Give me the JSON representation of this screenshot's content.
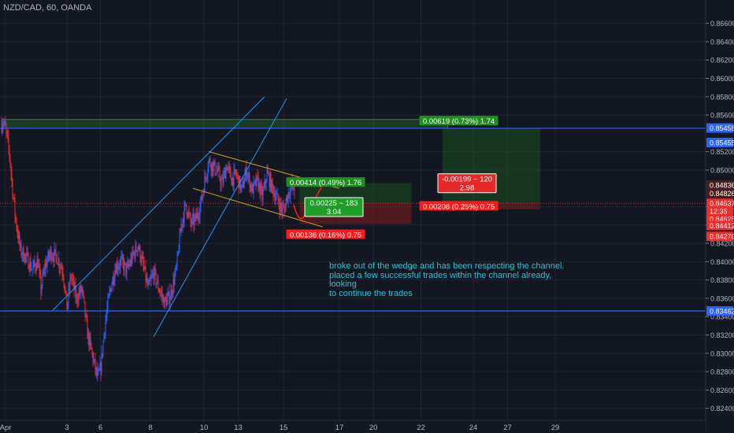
{
  "symbol_label": "NZD/CAD, 60, OANDA",
  "colors": {
    "background": "#131722",
    "grid": "#1f2430",
    "bull": "#2962ff",
    "bear": "#ef2b2b",
    "wedge": "#2196f3",
    "channel": "#c8a020",
    "level": "#2962ff",
    "green_zone": "#1b5e20",
    "red_zone": "#7f1d1d",
    "path": "#ff1a1a",
    "note": "#1ec8d8"
  },
  "chart_data": {
    "type": "candlestick",
    "price_axis_ticks": [
      "0.86600",
      "0.86400",
      "0.86200",
      "0.86000",
      "0.85800",
      "0.85600",
      "0.85200",
      "0.85000",
      "0.84600",
      "0.84400",
      "0.84200",
      "0.84000",
      "0.83800",
      "0.83600",
      "0.83400",
      "0.83200",
      "0.83000",
      "0.82800",
      "0.82600",
      "0.82400"
    ],
    "ylim": [
      0.8238,
      0.867
    ],
    "time_axis": [
      {
        "label": "Apr",
        "i": 10
      },
      {
        "label": "3",
        "i": 166
      },
      {
        "label": "6",
        "i": 251
      },
      {
        "label": "8",
        "i": 378
      },
      {
        "label": "10",
        "i": 514
      },
      {
        "label": "13",
        "i": 601
      },
      {
        "label": "15",
        "i": 716
      },
      {
        "label": "17",
        "i": 858
      },
      {
        "label": "20",
        "i": 944
      },
      {
        "label": "22",
        "i": 1065
      },
      {
        "label": "24",
        "i": 1198
      },
      {
        "label": "27",
        "i": 1285
      },
      {
        "label": "29",
        "i": 1406
      }
    ],
    "anchors": [
      [
        0,
        0.855
      ],
      [
        4,
        0.8553
      ],
      [
        10,
        0.8545
      ],
      [
        20,
        0.8518
      ],
      [
        28,
        0.8478
      ],
      [
        36,
        0.8445
      ],
      [
        48,
        0.8412
      ],
      [
        62,
        0.8405
      ],
      [
        78,
        0.8392
      ],
      [
        92,
        0.84
      ],
      [
        100,
        0.837
      ],
      [
        110,
        0.8395
      ],
      [
        124,
        0.841
      ],
      [
        140,
        0.8405
      ],
      [
        156,
        0.839
      ],
      [
        166,
        0.835
      ],
      [
        176,
        0.8385
      ],
      [
        190,
        0.836
      ],
      [
        204,
        0.837
      ],
      [
        218,
        0.8322
      ],
      [
        232,
        0.8295
      ],
      [
        244,
        0.8272
      ],
      [
        252,
        0.8285
      ],
      [
        262,
        0.833
      ],
      [
        276,
        0.837
      ],
      [
        290,
        0.8395
      ],
      [
        304,
        0.84
      ],
      [
        318,
        0.839
      ],
      [
        332,
        0.8405
      ],
      [
        346,
        0.8418
      ],
      [
        360,
        0.8395
      ],
      [
        372,
        0.837
      ],
      [
        386,
        0.8388
      ],
      [
        400,
        0.837
      ],
      [
        414,
        0.8355
      ],
      [
        428,
        0.8362
      ],
      [
        444,
        0.8392
      ],
      [
        456,
        0.844
      ],
      [
        468,
        0.8462
      ],
      [
        480,
        0.8442
      ],
      [
        492,
        0.8445
      ],
      [
        504,
        0.846
      ],
      [
        516,
        0.8488
      ],
      [
        526,
        0.851
      ],
      [
        536,
        0.8505
      ],
      [
        548,
        0.8498
      ],
      [
        560,
        0.8485
      ],
      [
        572,
        0.8505
      ],
      [
        584,
        0.849
      ],
      [
        596,
        0.8495
      ],
      [
        610,
        0.8478
      ],
      [
        622,
        0.85
      ],
      [
        636,
        0.8478
      ],
      [
        650,
        0.8488
      ],
      [
        662,
        0.847
      ],
      [
        674,
        0.8496
      ],
      [
        686,
        0.8482
      ],
      [
        698,
        0.847
      ],
      [
        710,
        0.8458
      ],
      [
        718,
        0.8456
      ],
      [
        724,
        0.847
      ],
      [
        734,
        0.8482
      ],
      [
        744,
        0.8479
      ]
    ],
    "levels": [
      0.85455,
      0.83462
    ],
    "wedge_lines": [
      {
        "from": [
          130,
          0.8347
        ],
        "to": [
          668,
          0.858
        ]
      },
      {
        "from": [
          386,
          0.8318
        ],
        "to": [
          724,
          0.8578
        ]
      }
    ],
    "channel_lines": [
      {
        "from": [
          526,
          0.852
        ],
        "to": [
          857,
          0.848
        ]
      },
      {
        "from": [
          486,
          0.848
        ],
        "to": [
          815,
          0.8438
        ]
      }
    ],
    "level_extension": {
      "from": 0,
      "to": 1133,
      "price_top": 0.85552,
      "price_bottom": 0.85455
    },
    "positions": [
      {
        "left": 757,
        "right": 1041,
        "entry": 0.84636,
        "target": 0.84858,
        "stop": 0.84412
      },
      {
        "left": 1120,
        "right": 1368,
        "entry": 0.84636,
        "target": 0.85455,
        "stop": 0.8457
      }
    ],
    "projected_path": [
      [
        742,
        0.8462
      ],
      [
        754,
        0.8443
      ],
      [
        766,
        0.8448
      ],
      [
        796,
        0.8469
      ],
      [
        818,
        0.8485
      ]
    ],
    "price_labels": [
      {
        "text": "0.85458",
        "price": 0.85458,
        "color": "#2962ff"
      },
      {
        "text": "0.85455",
        "price": 0.853,
        "color": "#2962ff"
      },
      {
        "text": "0.84836",
        "price": 0.84836,
        "color": "#4a1e1e"
      },
      {
        "text": "0.84826",
        "price": 0.84746,
        "color": "#4a1e1e"
      },
      {
        "text": "0.84637",
        "price": 0.84637,
        "color": "#ef2b2b"
      },
      {
        "text": "12:35",
        "price": 0.84551,
        "color": "#ef2b2b"
      },
      {
        "text": "0.84628",
        "price": 0.84465,
        "color": "#ef2b2b"
      },
      {
        "text": "0.84412",
        "price": 0.84395,
        "color": "#ef2b2b"
      },
      {
        "text": "0.84276",
        "price": 0.84276,
        "color": "#ef2b2b"
      },
      {
        "text": "0.83462",
        "price": 0.83462,
        "color": "#2962ff"
      }
    ],
    "trade_labels": [
      {
        "text": "0.00414 (0.49%) 1.76",
        "price": 0.8487,
        "x_index": 823,
        "kind": "profit"
      },
      {
        "text": "0.00225 ~ 183",
        "text2": "3.04",
        "price": 0.84596,
        "x_index": 844,
        "kind": "box_green"
      },
      {
        "text": "0.00136 (0.16%) 0.75",
        "price": 0.843,
        "x_index": 823,
        "kind": "loss"
      },
      {
        "text": "0.00619 (0.73%) 1.74",
        "price": 0.8554,
        "x_index": 1161,
        "kind": "profit"
      },
      {
        "text": "-0.00199 ~ 120",
        "text2": "2.98",
        "price": 0.84856,
        "x_index": 1182,
        "kind": "box_red"
      },
      {
        "text": "0.00208 (0.25%) 0.75",
        "price": 0.8461,
        "x_index": 1161,
        "kind": "loss"
      }
    ]
  },
  "annotation": {
    "lines": [
      "broke out of the wedge and has been respecting the channel.",
      "placed a few successful trades within the channel already, looking",
      "to continue the trades"
    ]
  }
}
